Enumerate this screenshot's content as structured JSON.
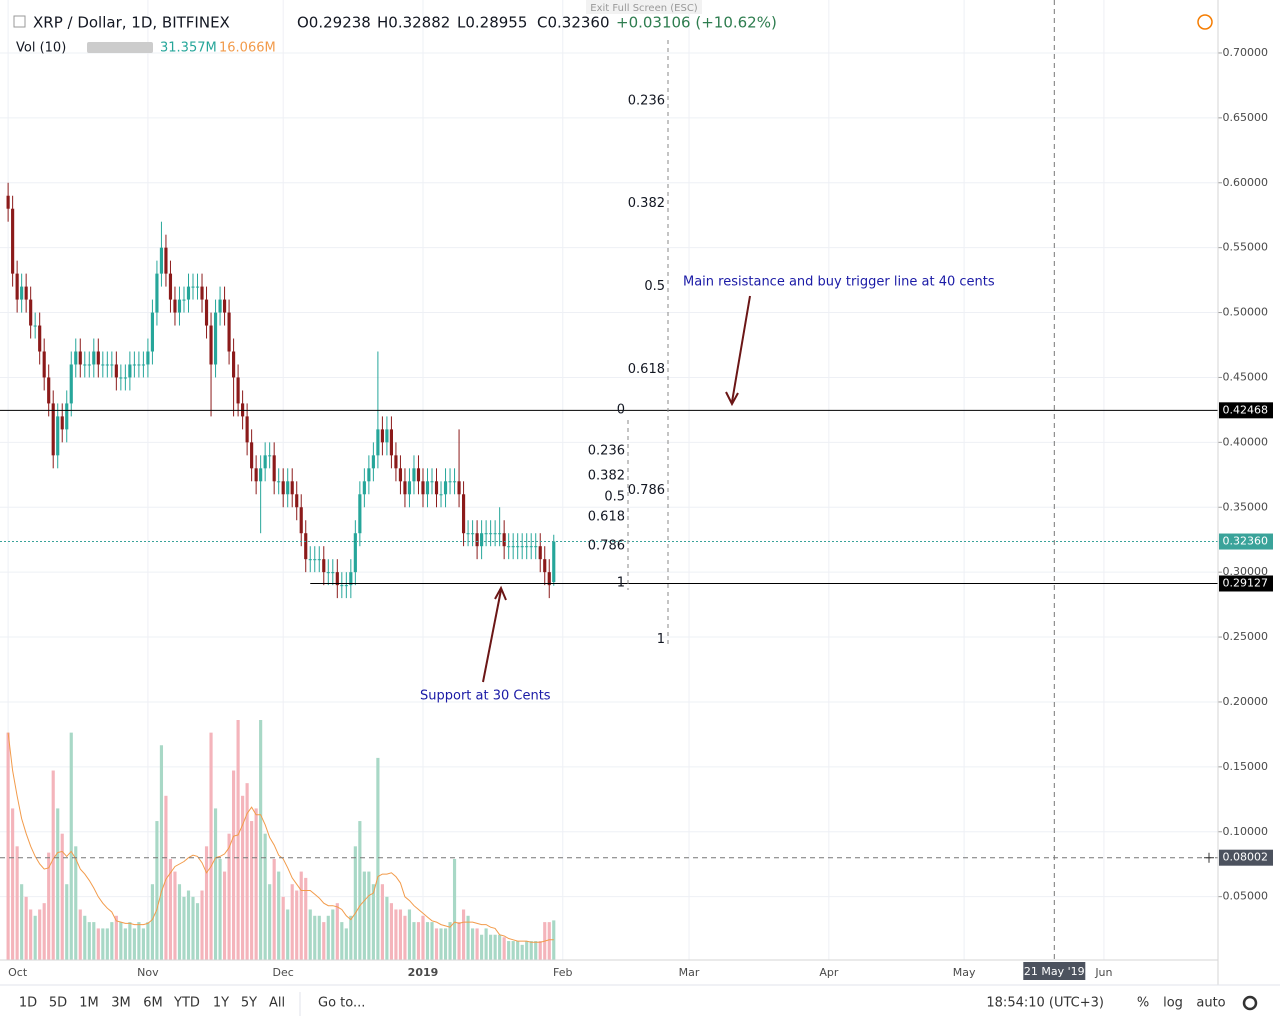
{
  "ui": {
    "exit_full_screen": "Exit Full Screen (ESC)",
    "symbol": "XRP / Dollar, 1D, BITFINEX",
    "ohlc": [
      "O0.29238",
      "H0.32882",
      "L0.28955",
      "C0.32360"
    ],
    "change": "+0.03106 (+10.62%)",
    "vol_title": "Vol (10)",
    "vol_value": "31.357M",
    "vol_ma_value": "16.066M",
    "ranges": [
      "1D",
      "5D",
      "1M",
      "3M",
      "6M",
      "YTD",
      "1Y",
      "5Y",
      "All"
    ],
    "goto": "Go to...",
    "clock": "18:54:10 (UTC+3)",
    "scale_buttons": [
      "%",
      "log",
      "auto"
    ]
  },
  "chart_data": {
    "type": "candlestick",
    "open": [
      0.59,
      0.58,
      0.53,
      0.51,
      0.52,
      0.51,
      0.49,
      0.49,
      0.47,
      0.45,
      0.43,
      0.39,
      0.42,
      0.41,
      0.43,
      0.46,
      0.47,
      0.46,
      0.46,
      0.46,
      0.47,
      0.46,
      0.46,
      0.46,
      0.46,
      0.45,
      0.45,
      0.45,
      0.46,
      0.46,
      0.46,
      0.46,
      0.47,
      0.5,
      0.53,
      0.55,
      0.53,
      0.51,
      0.5,
      0.51,
      0.51,
      0.52,
      0.52,
      0.52,
      0.51,
      0.49,
      0.46,
      0.5,
      0.51,
      0.5,
      0.47,
      0.45,
      0.43,
      0.42,
      0.4,
      0.38,
      0.37,
      0.38,
      0.39,
      0.39,
      0.37,
      0.37,
      0.36,
      0.37,
      0.36,
      0.35,
      0.33,
      0.31,
      0.31,
      0.31,
      0.31,
      0.3,
      0.3,
      0.3,
      0.29,
      0.29,
      0.29,
      0.3,
      0.33,
      0.36,
      0.37,
      0.38,
      0.39,
      0.41,
      0.4,
      0.41,
      0.39,
      0.38,
      0.37,
      0.36,
      0.37,
      0.38,
      0.37,
      0.36,
      0.37,
      0.37,
      0.36,
      0.36,
      0.37,
      0.37,
      0.37,
      0.36,
      0.33,
      0.33,
      0.33,
      0.32,
      0.33,
      0.33,
      0.33,
      0.33,
      0.33,
      0.32,
      0.32,
      0.32,
      0.32,
      0.32,
      0.32,
      0.32,
      0.32,
      0.31,
      0.3,
      0.29238
    ],
    "high": [
      0.6,
      0.59,
      0.54,
      0.53,
      0.53,
      0.52,
      0.5,
      0.5,
      0.48,
      0.46,
      0.44,
      0.43,
      0.43,
      0.44,
      0.47,
      0.48,
      0.48,
      0.47,
      0.47,
      0.48,
      0.48,
      0.47,
      0.47,
      0.47,
      0.47,
      0.46,
      0.46,
      0.47,
      0.47,
      0.47,
      0.47,
      0.48,
      0.51,
      0.54,
      0.57,
      0.56,
      0.54,
      0.52,
      0.52,
      0.52,
      0.53,
      0.53,
      0.53,
      0.53,
      0.52,
      0.5,
      0.51,
      0.52,
      0.52,
      0.51,
      0.48,
      0.46,
      0.44,
      0.43,
      0.41,
      0.39,
      0.39,
      0.4,
      0.4,
      0.4,
      0.38,
      0.38,
      0.38,
      0.38,
      0.37,
      0.36,
      0.34,
      0.32,
      0.32,
      0.32,
      0.32,
      0.31,
      0.31,
      0.31,
      0.3,
      0.3,
      0.31,
      0.34,
      0.37,
      0.38,
      0.39,
      0.4,
      0.47,
      0.42,
      0.42,
      0.42,
      0.4,
      0.39,
      0.38,
      0.38,
      0.39,
      0.39,
      0.38,
      0.38,
      0.38,
      0.38,
      0.37,
      0.38,
      0.38,
      0.38,
      0.41,
      0.37,
      0.34,
      0.34,
      0.34,
      0.34,
      0.34,
      0.34,
      0.34,
      0.35,
      0.34,
      0.33,
      0.33,
      0.33,
      0.33,
      0.33,
      0.33,
      0.33,
      0.33,
      0.32,
      0.31,
      0.32882
    ],
    "low": [
      0.57,
      0.52,
      0.5,
      0.5,
      0.5,
      0.48,
      0.48,
      0.46,
      0.44,
      0.42,
      0.38,
      0.38,
      0.4,
      0.4,
      0.42,
      0.45,
      0.45,
      0.45,
      0.45,
      0.45,
      0.45,
      0.45,
      0.45,
      0.45,
      0.44,
      0.44,
      0.44,
      0.44,
      0.45,
      0.45,
      0.45,
      0.45,
      0.46,
      0.49,
      0.52,
      0.52,
      0.5,
      0.49,
      0.49,
      0.5,
      0.5,
      0.51,
      0.51,
      0.5,
      0.48,
      0.42,
      0.45,
      0.49,
      0.49,
      0.46,
      0.42,
      0.42,
      0.41,
      0.39,
      0.37,
      0.36,
      0.33,
      0.37,
      0.38,
      0.36,
      0.36,
      0.35,
      0.35,
      0.35,
      0.34,
      0.32,
      0.3,
      0.3,
      0.3,
      0.3,
      0.29,
      0.29,
      0.29,
      0.28,
      0.28,
      0.28,
      0.28,
      0.29,
      0.32,
      0.35,
      0.36,
      0.37,
      0.38,
      0.39,
      0.39,
      0.38,
      0.37,
      0.36,
      0.35,
      0.35,
      0.36,
      0.36,
      0.35,
      0.35,
      0.36,
      0.35,
      0.35,
      0.35,
      0.36,
      0.36,
      0.35,
      0.32,
      0.32,
      0.32,
      0.31,
      0.31,
      0.32,
      0.32,
      0.32,
      0.32,
      0.31,
      0.31,
      0.31,
      0.31,
      0.31,
      0.31,
      0.31,
      0.31,
      0.3,
      0.29,
      0.28,
      0.28955
    ],
    "close": [
      0.58,
      0.53,
      0.51,
      0.52,
      0.51,
      0.49,
      0.49,
      0.47,
      0.45,
      0.43,
      0.39,
      0.42,
      0.41,
      0.43,
      0.46,
      0.47,
      0.46,
      0.46,
      0.46,
      0.47,
      0.46,
      0.46,
      0.46,
      0.46,
      0.45,
      0.45,
      0.45,
      0.46,
      0.46,
      0.46,
      0.46,
      0.47,
      0.5,
      0.53,
      0.55,
      0.53,
      0.51,
      0.5,
      0.51,
      0.51,
      0.52,
      0.52,
      0.52,
      0.51,
      0.49,
      0.46,
      0.5,
      0.51,
      0.5,
      0.47,
      0.45,
      0.43,
      0.42,
      0.4,
      0.38,
      0.37,
      0.38,
      0.39,
      0.39,
      0.37,
      0.37,
      0.36,
      0.37,
      0.36,
      0.35,
      0.33,
      0.31,
      0.31,
      0.31,
      0.31,
      0.3,
      0.3,
      0.3,
      0.29,
      0.29,
      0.29,
      0.3,
      0.33,
      0.36,
      0.37,
      0.38,
      0.39,
      0.41,
      0.4,
      0.41,
      0.39,
      0.38,
      0.37,
      0.36,
      0.37,
      0.38,
      0.37,
      0.36,
      0.37,
      0.37,
      0.36,
      0.36,
      0.37,
      0.37,
      0.37,
      0.36,
      0.33,
      0.33,
      0.33,
      0.32,
      0.33,
      0.33,
      0.33,
      0.33,
      0.33,
      0.32,
      0.32,
      0.32,
      0.32,
      0.32,
      0.32,
      0.32,
      0.32,
      0.31,
      0.3,
      0.29,
      0.3236
    ],
    "volume": [
      180,
      120,
      90,
      60,
      50,
      40,
      35,
      40,
      45,
      85,
      150,
      120,
      100,
      60,
      180,
      90,
      40,
      35,
      30,
      30,
      25,
      25,
      25,
      30,
      35,
      30,
      25,
      30,
      25,
      30,
      25,
      30,
      60,
      110,
      170,
      130,
      80,
      70,
      60,
      50,
      55,
      50,
      45,
      55,
      90,
      180,
      120,
      80,
      70,
      100,
      150,
      190,
      130,
      140,
      110,
      120,
      190,
      100,
      60,
      80,
      70,
      50,
      40,
      60,
      55,
      70,
      65,
      40,
      35,
      35,
      30,
      35,
      40,
      45,
      30,
      25,
      35,
      90,
      110,
      70,
      70,
      60,
      160,
      60,
      50,
      45,
      40,
      40,
      35,
      40,
      30,
      30,
      35,
      30,
      30,
      25,
      25,
      25,
      30,
      80,
      30,
      40,
      35,
      25,
      25,
      20,
      25,
      20,
      20,
      20,
      18,
      15,
      15,
      15,
      12,
      15,
      15,
      15,
      15,
      30,
      30,
      31.357
    ],
    "vol_ma": [
      180,
      150,
      130,
      112,
      100,
      90,
      82,
      76,
      72,
      73,
      80,
      85,
      86,
      82,
      86,
      80,
      72,
      68,
      63,
      57,
      50,
      45,
      41,
      38,
      31,
      30,
      29,
      29,
      28,
      28,
      28,
      29,
      32,
      40,
      54,
      64,
      69,
      74,
      76,
      78,
      81,
      83,
      82,
      77,
      69,
      74,
      81,
      82,
      84,
      89,
      98,
      99,
      107,
      116,
      121,
      115,
      115,
      107,
      97,
      91,
      83,
      80,
      73,
      65,
      60,
      55,
      55,
      55,
      52,
      49,
      45,
      43,
      43,
      42,
      40,
      35,
      32,
      37,
      43,
      47,
      51,
      53,
      66,
      68,
      68,
      69,
      66,
      61,
      50,
      47,
      43,
      40,
      37,
      34,
      31,
      30,
      28,
      27,
      26,
      30,
      29,
      30,
      30,
      30,
      29,
      28,
      28,
      26,
      25,
      20,
      19,
      17,
      16,
      15,
      15,
      15,
      14,
      14,
      14,
      15,
      16,
      16.066
    ],
    "up_color": "#26a69a",
    "down_color": "#8b1a1a",
    "vol_up_color": "#a8d8c6",
    "vol_down_color": "#f4b4bb",
    "ma_color": "#f29b4b",
    "xlim": [
      -1.8,
      268.3
    ],
    "xticks": [
      {
        "value": 0,
        "label": "Oct"
      },
      {
        "value": 31,
        "label": "Nov"
      },
      {
        "value": 61,
        "label": "Dec"
      },
      {
        "value": 92,
        "label": "2019"
      },
      {
        "value": 123,
        "label": "Feb"
      },
      {
        "value": 151,
        "label": "Mar"
      },
      {
        "value": 182,
        "label": "Apr"
      },
      {
        "value": 212,
        "label": "May"
      },
      {
        "value": 243,
        "label": "Jun"
      }
    ],
    "ylim": [
      0.0012,
      0.7408
    ],
    "vlim": [
      0,
      760
    ],
    "yticks": [
      {
        "value": 0.7,
        "label": "0.70000"
      },
      {
        "value": 0.65,
        "label": "0.65000"
      },
      {
        "value": 0.6,
        "label": "0.60000"
      },
      {
        "value": 0.55,
        "label": "0.55000"
      },
      {
        "value": 0.5,
        "label": "0.50000"
      },
      {
        "value": 0.45,
        "label": "0.45000"
      },
      {
        "value": 0.4,
        "label": "0.40000"
      },
      {
        "value": 0.35,
        "label": "0.35000"
      },
      {
        "value": 0.3,
        "label": "0.30000"
      },
      {
        "value": 0.25,
        "label": "0.25000"
      },
      {
        "value": 0.2,
        "label": "0.20000"
      },
      {
        "value": 0.15,
        "label": "0.15000"
      },
      {
        "value": 0.1,
        "label": "0.10000"
      },
      {
        "value": 0.05,
        "label": "0.05000"
      }
    ],
    "grid": true,
    "price_lines": [
      {
        "price": 0.42468,
        "color": "#000000",
        "start": -1.8
      },
      {
        "price": 0.29127,
        "color": "#000000",
        "start": 67
      },
      {
        "price": {
          "value": 0.3236,
          "label": "0.32360"
        },
        "color": "#3aa39a",
        "start": -1.8
      }
    ],
    "crosshair": {
      "x": 232,
      "x_label": "21 May '19",
      "y": 0.08002
    },
    "fib_sets": [
      [
        {
          "value": 0.663,
          "label": "0.236"
        },
        {
          "value": 0.584,
          "label": "0.382"
        },
        {
          "value": 0.52,
          "label": "0.5"
        },
        {
          "value": 0.456,
          "label": "0.618"
        },
        {
          "value": 0.363,
          "label": "0.786"
        },
        {
          "value": 0.248,
          "label": "1"
        }
      ],
      [
        {
          "value": 0.425,
          "label": "0"
        },
        {
          "value": 0.3934,
          "label": "0.236"
        },
        {
          "value": 0.3741,
          "label": "0.382"
        },
        {
          "value": 0.3579,
          "label": "0.5"
        },
        {
          "value": 0.3425,
          "label": "0.618"
        },
        {
          "value": 0.3202,
          "label": "0.786"
        },
        {
          "value": 0.2917,
          "label": "1"
        }
      ]
    ],
    "annotations": [
      "Main resistance and buy trigger line at 40 cents",
      "Support at 30 Cents"
    ]
  }
}
